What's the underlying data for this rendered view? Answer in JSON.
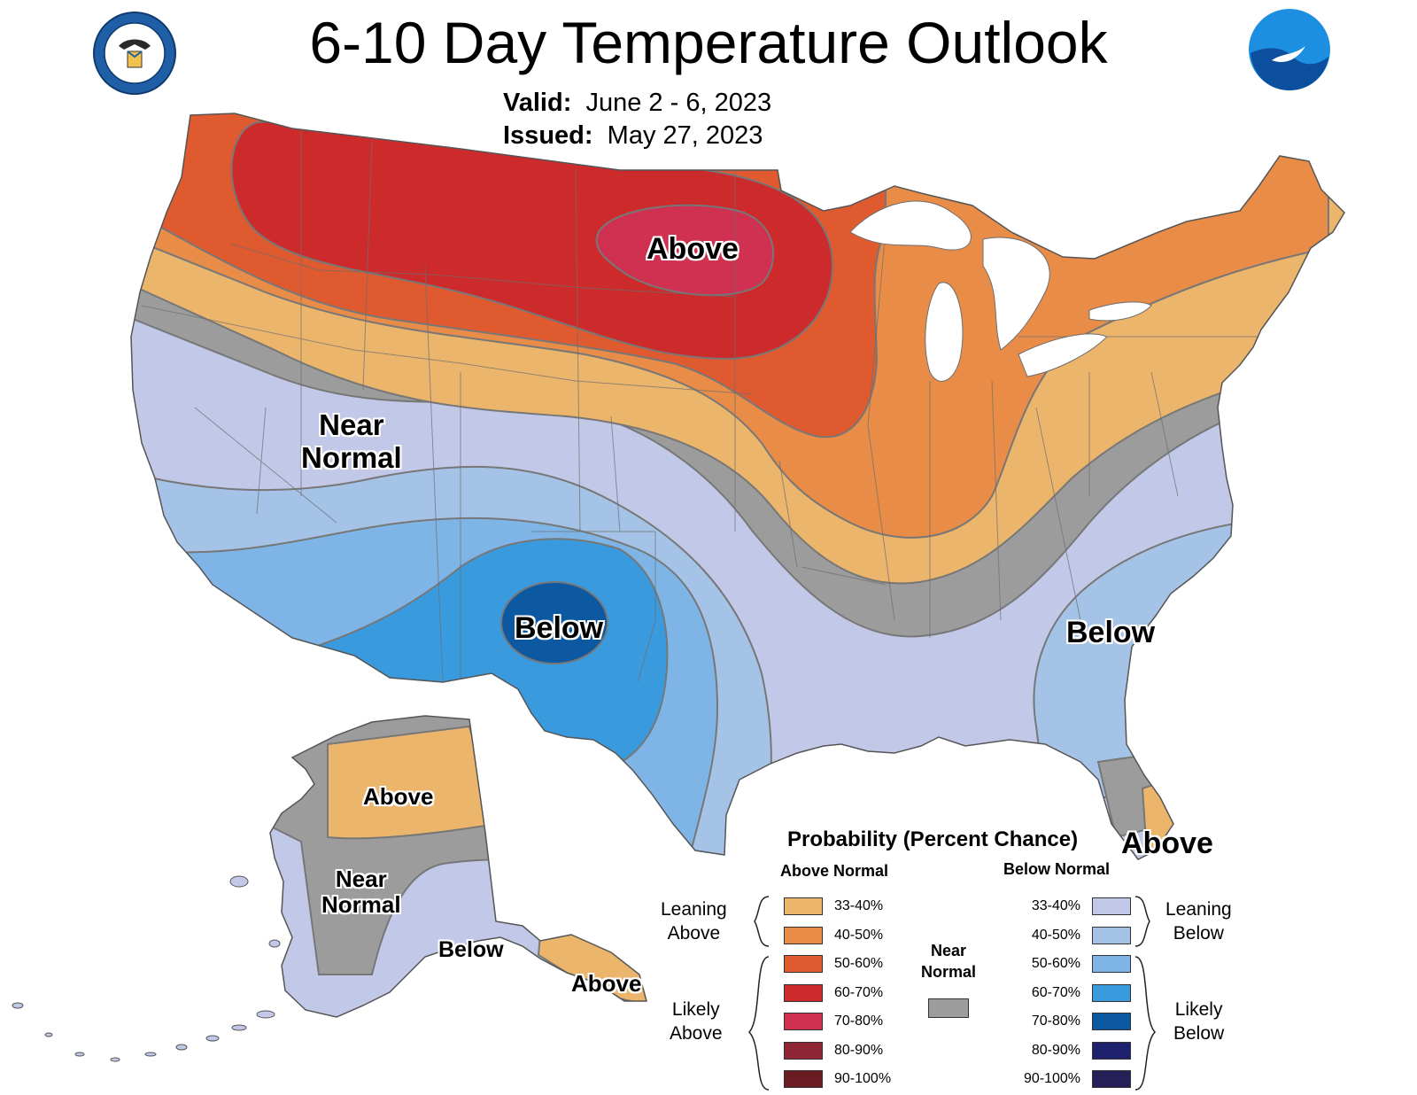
{
  "title": "6-10 Day Temperature Outlook",
  "valid_label": "Valid:",
  "valid_value": "June 2 - 6, 2023",
  "issued_label": "Issued:",
  "issued_value": "May 27, 2023",
  "map_labels": {
    "above_north": "Above",
    "near_normal_west_1": "Near",
    "near_normal_west_2": "Normal",
    "below_southwest": "Below",
    "below_southeast": "Below",
    "above_florida": "Above",
    "ak_above_north": "Above",
    "ak_near_1": "Near",
    "ak_near_2": "Normal",
    "ak_below": "Below",
    "ak_above_southeast": "Above"
  },
  "legend": {
    "title": "Probability (Percent Chance)",
    "above_header": "Above Normal",
    "below_header": "Below Normal",
    "near_label_1": "Near",
    "near_label_2": "Normal",
    "near_color": "#9c9c9c",
    "leaning_above_1": "Leaning",
    "leaning_above_2": "Above",
    "likely_above_1": "Likely",
    "likely_above_2": "Above",
    "leaning_below_1": "Leaning",
    "leaning_below_2": "Below",
    "likely_below_1": "Likely",
    "likely_below_2": "Below",
    "above": [
      {
        "label": "33-40%",
        "color": "#ecb56c"
      },
      {
        "label": "40-50%",
        "color": "#e88c47"
      },
      {
        "label": "50-60%",
        "color": "#df5a2f"
      },
      {
        "label": "60-70%",
        "color": "#cd2b2b"
      },
      {
        "label": "70-80%",
        "color": "#d03151"
      },
      {
        "label": "80-90%",
        "color": "#8e2636"
      },
      {
        "label": "90-100%",
        "color": "#6b1c23"
      }
    ],
    "below": [
      {
        "label": "33-40%",
        "color": "#c2c9e8"
      },
      {
        "label": "40-50%",
        "color": "#a4c3e6"
      },
      {
        "label": "50-60%",
        "color": "#7fb5e6"
      },
      {
        "label": "60-70%",
        "color": "#3a9ade"
      },
      {
        "label": "70-80%",
        "color": "#0c59a2"
      },
      {
        "label": "80-90%",
        "color": "#1d216e"
      },
      {
        "label": "90-100%",
        "color": "#252158"
      }
    ]
  },
  "logos": {
    "left": "department-of-commerce-seal-icon",
    "right": "noaa-logo-icon"
  }
}
